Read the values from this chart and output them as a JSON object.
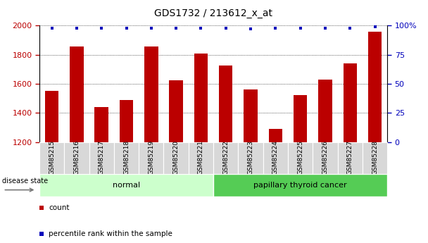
{
  "title": "GDS1732 / 213612_x_at",
  "samples": [
    "GSM85215",
    "GSM85216",
    "GSM85217",
    "GSM85218",
    "GSM85219",
    "GSM85220",
    "GSM85221",
    "GSM85222",
    "GSM85223",
    "GSM85224",
    "GSM85225",
    "GSM85226",
    "GSM85227",
    "GSM85228"
  ],
  "counts": [
    1550,
    1855,
    1440,
    1490,
    1855,
    1625,
    1810,
    1725,
    1560,
    1290,
    1525,
    1630,
    1740,
    1960
  ],
  "percentiles": [
    98,
    98,
    98,
    98,
    98,
    98,
    98,
    98,
    97,
    98,
    98,
    98,
    98,
    99
  ],
  "bar_color": "#bb0000",
  "dot_color": "#0000bb",
  "ylim_left": [
    1200,
    2000
  ],
  "ylim_right": [
    0,
    100
  ],
  "yticks_left": [
    1200,
    1400,
    1600,
    1800,
    2000
  ],
  "yticks_right": [
    0,
    25,
    50,
    75,
    100
  ],
  "ytick_right_labels": [
    "0",
    "25",
    "50",
    "75",
    "100%"
  ],
  "grid_yticks": [
    1400,
    1600,
    1800,
    2000
  ],
  "groups": [
    {
      "label": "normal",
      "start": 0,
      "end": 7
    },
    {
      "label": "papillary thyroid cancer",
      "start": 7,
      "end": 14
    }
  ],
  "group_colors": [
    "#ccffcc",
    "#55cc55"
  ],
  "disease_state_label": "disease state",
  "legend_items": [
    {
      "label": "count",
      "color": "#bb0000"
    },
    {
      "label": "percentile rank within the sample",
      "color": "#0000bb"
    }
  ],
  "tick_label_bg": "#d8d8d8",
  "bar_width": 0.55,
  "title_fontsize": 10,
  "axis_fontsize": 8,
  "tick_fontsize": 6.5
}
